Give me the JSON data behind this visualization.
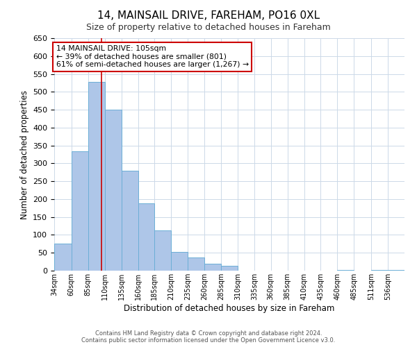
{
  "title": "14, MAINSAIL DRIVE, FAREHAM, PO16 0XL",
  "subtitle": "Size of property relative to detached houses in Fareham",
  "xlabel": "Distribution of detached houses by size in Fareham",
  "ylabel": "Number of detached properties",
  "bar_left_edges": [
    34,
    60,
    85,
    110,
    135,
    160,
    185,
    210,
    235,
    260,
    285,
    310,
    335,
    360,
    385,
    410,
    435,
    460,
    485,
    511,
    536
  ],
  "bar_widths": [
    26,
    25,
    25,
    25,
    25,
    25,
    25,
    25,
    25,
    25,
    25,
    25,
    25,
    25,
    25,
    25,
    25,
    25,
    26,
    25,
    25
  ],
  "bar_heights": [
    75,
    333,
    528,
    450,
    280,
    188,
    113,
    52,
    37,
    20,
    13,
    0,
    0,
    0,
    0,
    0,
    0,
    2,
    0,
    2,
    2
  ],
  "bar_color": "#aec6e8",
  "bar_edgecolor": "#6baed6",
  "vline_x": 105,
  "vline_color": "#cc0000",
  "ylim": [
    0,
    650
  ],
  "yticks": [
    0,
    50,
    100,
    150,
    200,
    250,
    300,
    350,
    400,
    450,
    500,
    550,
    600,
    650
  ],
  "xtick_labels": [
    "34sqm",
    "60sqm",
    "85sqm",
    "110sqm",
    "135sqm",
    "160sqm",
    "185sqm",
    "210sqm",
    "235sqm",
    "260sqm",
    "285sqm",
    "310sqm",
    "335sqm",
    "360sqm",
    "385sqm",
    "410sqm",
    "435sqm",
    "460sqm",
    "485sqm",
    "511sqm",
    "536sqm"
  ],
  "annotation_line1": "14 MAINSAIL DRIVE: 105sqm",
  "annotation_line2": "← 39% of detached houses are smaller (801)",
  "annotation_line3": "61% of semi-detached houses are larger (1,267) →",
  "annotation_box_color": "#ffffff",
  "annotation_box_edgecolor": "#cc0000",
  "footer_line1": "Contains HM Land Registry data © Crown copyright and database right 2024.",
  "footer_line2": "Contains public sector information licensed under the Open Government Licence v3.0.",
  "background_color": "#ffffff",
  "grid_color": "#ccd9e8",
  "title_fontsize": 11,
  "subtitle_fontsize": 9
}
